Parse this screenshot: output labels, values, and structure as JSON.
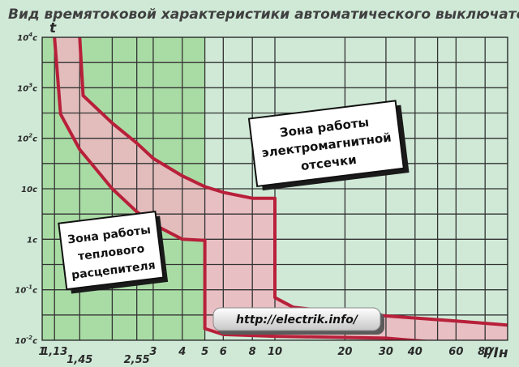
{
  "colors": {
    "background": "#cfe9d6",
    "thermal_zone": "#a9dca5",
    "curve": "#b8203a",
    "fill": "#ecb7bf",
    "fill_thermal": "#d8ccb2",
    "grid": "#333333"
  },
  "chart_data": {
    "type": "area",
    "title": "Вид времятоковой характеристики автоматического выключателя",
    "xlabel": "I/Iн",
    "ylabel": "t",
    "x_scale": "log",
    "y_scale": "log",
    "xlim": [
      1,
      100
    ],
    "ylim": [
      0.01,
      10000
    ],
    "grid": true,
    "x_ticks": [
      {
        "value": 1,
        "label": "1"
      },
      {
        "value": 1.13,
        "label": "1,13"
      },
      {
        "value": 1.45,
        "label": "1,45"
      },
      {
        "value": 2,
        "label": ""
      },
      {
        "value": 2.55,
        "label": "2,55"
      },
      {
        "value": 3,
        "label": "3"
      },
      {
        "value": 4,
        "label": "4"
      },
      {
        "value": 5,
        "label": "5"
      },
      {
        "value": 6,
        "label": "6"
      },
      {
        "value": 8,
        "label": "8"
      },
      {
        "value": 10,
        "label": "10"
      },
      {
        "value": 20,
        "label": "20"
      },
      {
        "value": 30,
        "label": "30"
      },
      {
        "value": 40,
        "label": "40"
      },
      {
        "value": 60,
        "label": "60"
      },
      {
        "value": 80,
        "label": "80"
      }
    ],
    "y_ticks": [
      {
        "value": 10000,
        "base": "10",
        "exp": "4",
        "unit": "c"
      },
      {
        "value": 1000,
        "base": "10",
        "exp": "3",
        "unit": "c"
      },
      {
        "value": 100,
        "base": "10",
        "exp": "2",
        "unit": "c"
      },
      {
        "value": 10,
        "base": "10c",
        "exp": "",
        "unit": ""
      },
      {
        "value": 1,
        "base": "1c",
        "exp": "",
        "unit": ""
      },
      {
        "value": 0.1,
        "base": "10",
        "exp": "-1",
        "unit": "c"
      },
      {
        "value": 0.01,
        "base": "10",
        "exp": "-2",
        "unit": "c"
      }
    ],
    "zones": [
      {
        "name": "thermal",
        "x_range": [
          1,
          5
        ]
      },
      {
        "name": "magnetic",
        "x_range": [
          5,
          100
        ]
      }
    ],
    "series": [
      {
        "role": "upper",
        "points": [
          [
            1.45,
            10000
          ],
          [
            1.5,
            700
          ],
          [
            2,
            200
          ],
          [
            2.55,
            80
          ],
          [
            3,
            40
          ],
          [
            4,
            18
          ],
          [
            5,
            11
          ],
          [
            6,
            8.5
          ],
          [
            8,
            6.5
          ],
          [
            10,
            6.5
          ],
          [
            10,
            0.07
          ],
          [
            12,
            0.045
          ],
          [
            20,
            0.035
          ],
          [
            60,
            0.024
          ],
          [
            100,
            0.02
          ]
        ]
      },
      {
        "role": "lower",
        "points": [
          [
            1.13,
            10000
          ],
          [
            1.2,
            300
          ],
          [
            1.45,
            60
          ],
          [
            2,
            10
          ],
          [
            2.55,
            3.5
          ],
          [
            3,
            2
          ],
          [
            4,
            1
          ],
          [
            5,
            0.95
          ],
          [
            5,
            0.017
          ],
          [
            6,
            0.013
          ],
          [
            10,
            0.012
          ],
          [
            30,
            0.011
          ],
          [
            60,
            0.0085
          ],
          [
            100,
            0.0068
          ]
        ]
      }
    ]
  },
  "callouts": {
    "magnetic": [
      "Зона работы",
      "электромагнитной",
      "отсечки"
    ],
    "thermal": [
      "Зона работы",
      "теплового",
      "расцепителя"
    ]
  },
  "watermark": "http://electrik.info/"
}
